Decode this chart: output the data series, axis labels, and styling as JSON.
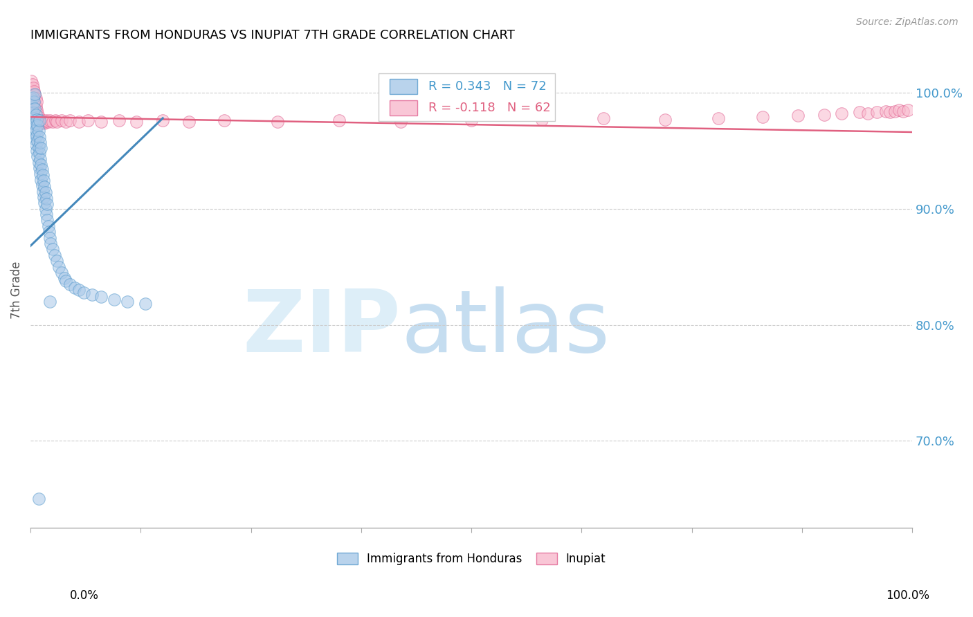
{
  "title": "IMMIGRANTS FROM HONDURAS VS INUPIAT 7TH GRADE CORRELATION CHART",
  "source": "Source: ZipAtlas.com",
  "ylabel": "7th Grade",
  "legend_label1": "Immigrants from Honduras",
  "legend_label2": "Inupiat",
  "r_blue": 0.343,
  "n_blue": 72,
  "r_pink": -0.118,
  "n_pink": 62,
  "blue_color": "#a8c8e8",
  "pink_color": "#f8b8cc",
  "blue_edge_color": "#5599cc",
  "pink_edge_color": "#e06090",
  "blue_line_color": "#4488bb",
  "pink_line_color": "#e06080",
  "grid_color": "#cccccc",
  "ytick_labels": [
    "70.0%",
    "80.0%",
    "90.0%",
    "100.0%"
  ],
  "ytick_values": [
    0.7,
    0.8,
    0.9,
    1.0
  ],
  "xlim": [
    0.0,
    1.0
  ],
  "ylim": [
    0.625,
    1.035
  ],
  "blue_scatter_x": [
    0.001,
    0.001,
    0.002,
    0.002,
    0.003,
    0.003,
    0.003,
    0.004,
    0.004,
    0.004,
    0.005,
    0.005,
    0.005,
    0.005,
    0.006,
    0.006,
    0.006,
    0.007,
    0.007,
    0.007,
    0.008,
    0.008,
    0.008,
    0.009,
    0.009,
    0.009,
    0.01,
    0.01,
    0.01,
    0.01,
    0.011,
    0.011,
    0.011,
    0.012,
    0.012,
    0.012,
    0.013,
    0.013,
    0.014,
    0.014,
    0.015,
    0.015,
    0.016,
    0.016,
    0.017,
    0.017,
    0.018,
    0.018,
    0.019,
    0.019,
    0.02,
    0.021,
    0.022,
    0.023,
    0.025,
    0.027,
    0.03,
    0.032,
    0.035,
    0.038,
    0.04,
    0.045,
    0.05,
    0.055,
    0.06,
    0.07,
    0.08,
    0.095,
    0.11,
    0.13,
    0.009,
    0.022
  ],
  "blue_scatter_y": [
    0.98,
    0.995,
    0.975,
    0.988,
    0.97,
    0.983,
    0.996,
    0.965,
    0.978,
    0.992,
    0.96,
    0.973,
    0.986,
    0.999,
    0.955,
    0.968,
    0.981,
    0.95,
    0.963,
    0.977,
    0.945,
    0.958,
    0.972,
    0.94,
    0.953,
    0.967,
    0.935,
    0.948,
    0.962,
    0.976,
    0.93,
    0.943,
    0.957,
    0.925,
    0.938,
    0.952,
    0.92,
    0.934,
    0.915,
    0.929,
    0.91,
    0.924,
    0.905,
    0.919,
    0.9,
    0.914,
    0.895,
    0.909,
    0.89,
    0.904,
    0.885,
    0.88,
    0.875,
    0.87,
    0.865,
    0.86,
    0.855,
    0.85,
    0.845,
    0.84,
    0.838,
    0.835,
    0.832,
    0.83,
    0.828,
    0.826,
    0.824,
    0.822,
    0.82,
    0.818,
    0.65,
    0.82
  ],
  "pink_scatter_x": [
    0.001,
    0.001,
    0.002,
    0.002,
    0.003,
    0.003,
    0.004,
    0.004,
    0.005,
    0.005,
    0.006,
    0.006,
    0.007,
    0.007,
    0.008,
    0.009,
    0.01,
    0.011,
    0.012,
    0.013,
    0.014,
    0.015,
    0.016,
    0.017,
    0.018,
    0.02,
    0.022,
    0.025,
    0.028,
    0.03,
    0.035,
    0.04,
    0.045,
    0.055,
    0.065,
    0.08,
    0.1,
    0.12,
    0.15,
    0.18,
    0.22,
    0.28,
    0.35,
    0.42,
    0.5,
    0.58,
    0.65,
    0.72,
    0.78,
    0.83,
    0.87,
    0.9,
    0.92,
    0.94,
    0.95,
    0.96,
    0.97,
    0.975,
    0.98,
    0.985,
    0.99,
    0.995
  ],
  "pink_scatter_y": [
    1.003,
    1.01,
    1.0,
    1.007,
    0.997,
    1.004,
    0.994,
    1.001,
    0.991,
    0.998,
    0.988,
    0.995,
    0.985,
    0.992,
    0.982,
    0.979,
    0.976,
    0.975,
    0.974,
    0.975,
    0.976,
    0.975,
    0.974,
    0.975,
    0.976,
    0.975,
    0.976,
    0.975,
    0.976,
    0.975,
    0.976,
    0.975,
    0.976,
    0.975,
    0.976,
    0.975,
    0.976,
    0.975,
    0.976,
    0.975,
    0.976,
    0.975,
    0.976,
    0.975,
    0.976,
    0.977,
    0.978,
    0.977,
    0.978,
    0.979,
    0.98,
    0.981,
    0.982,
    0.983,
    0.982,
    0.983,
    0.984,
    0.983,
    0.984,
    0.985,
    0.984,
    0.985
  ],
  "blue_line_x": [
    0.0,
    0.15
  ],
  "blue_line_y": [
    0.868,
    0.978
  ],
  "pink_line_x": [
    0.0,
    1.0
  ],
  "pink_line_y": [
    0.979,
    0.966
  ]
}
